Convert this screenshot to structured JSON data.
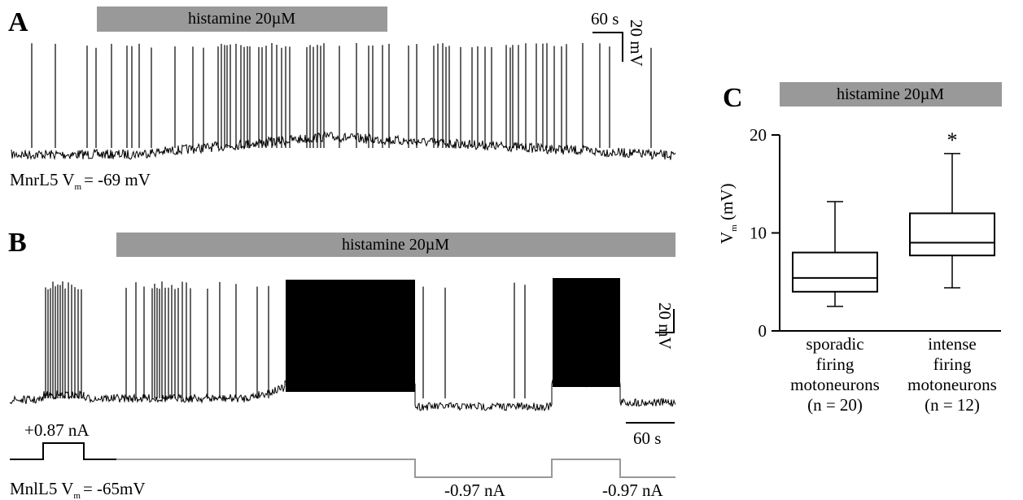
{
  "panels": {
    "A": {
      "letter": "A",
      "drug_label": "histamine 20µM",
      "scale_time": "60 s",
      "scale_voltage": "20 mV",
      "cell_prefix": "MnrL5 V",
      "cell_sub": "m",
      "cell_value": "= -69 mV"
    },
    "B": {
      "letter": "B",
      "drug_label": "histamine 20µM",
      "scale_voltage": "20 mV",
      "scale_time": "60 s",
      "current_pos": "+0.87 nA",
      "current_neg1": "-0.97 nA",
      "current_neg2": "-0.97 nA",
      "cell_prefix": "MnlL5 V",
      "cell_sub": "m",
      "cell_value": "= -65mV"
    },
    "C": {
      "letter": "C",
      "drug_label": "histamine 20µM",
      "significance": "*"
    }
  },
  "colors": {
    "drug_bar": "#999999",
    "trace": "#000000",
    "current_trace_gray": "#999999"
  },
  "chart_data": {
    "type": "box",
    "ylabel_main": "V",
    "ylabel_sub": "m",
    "ylabel_unit": " (mV)",
    "ylim": [
      0,
      20
    ],
    "yticks": [
      "0",
      "10",
      "20"
    ],
    "categories": [
      {
        "label_lines": [
          "sporadic",
          "firing",
          "motoneurons",
          "(n = 20)"
        ],
        "whisker_low": 2.5,
        "q1": 4.0,
        "median": 5.4,
        "q3": 8.0,
        "whisker_high": 13.2
      },
      {
        "label_lines": [
          "intense",
          "firing",
          "motoneurons",
          "(n = 12)"
        ],
        "whisker_low": 4.4,
        "q1": 7.7,
        "median": 9.0,
        "q3": 12.0,
        "whisker_high": 18.1
      }
    ]
  }
}
